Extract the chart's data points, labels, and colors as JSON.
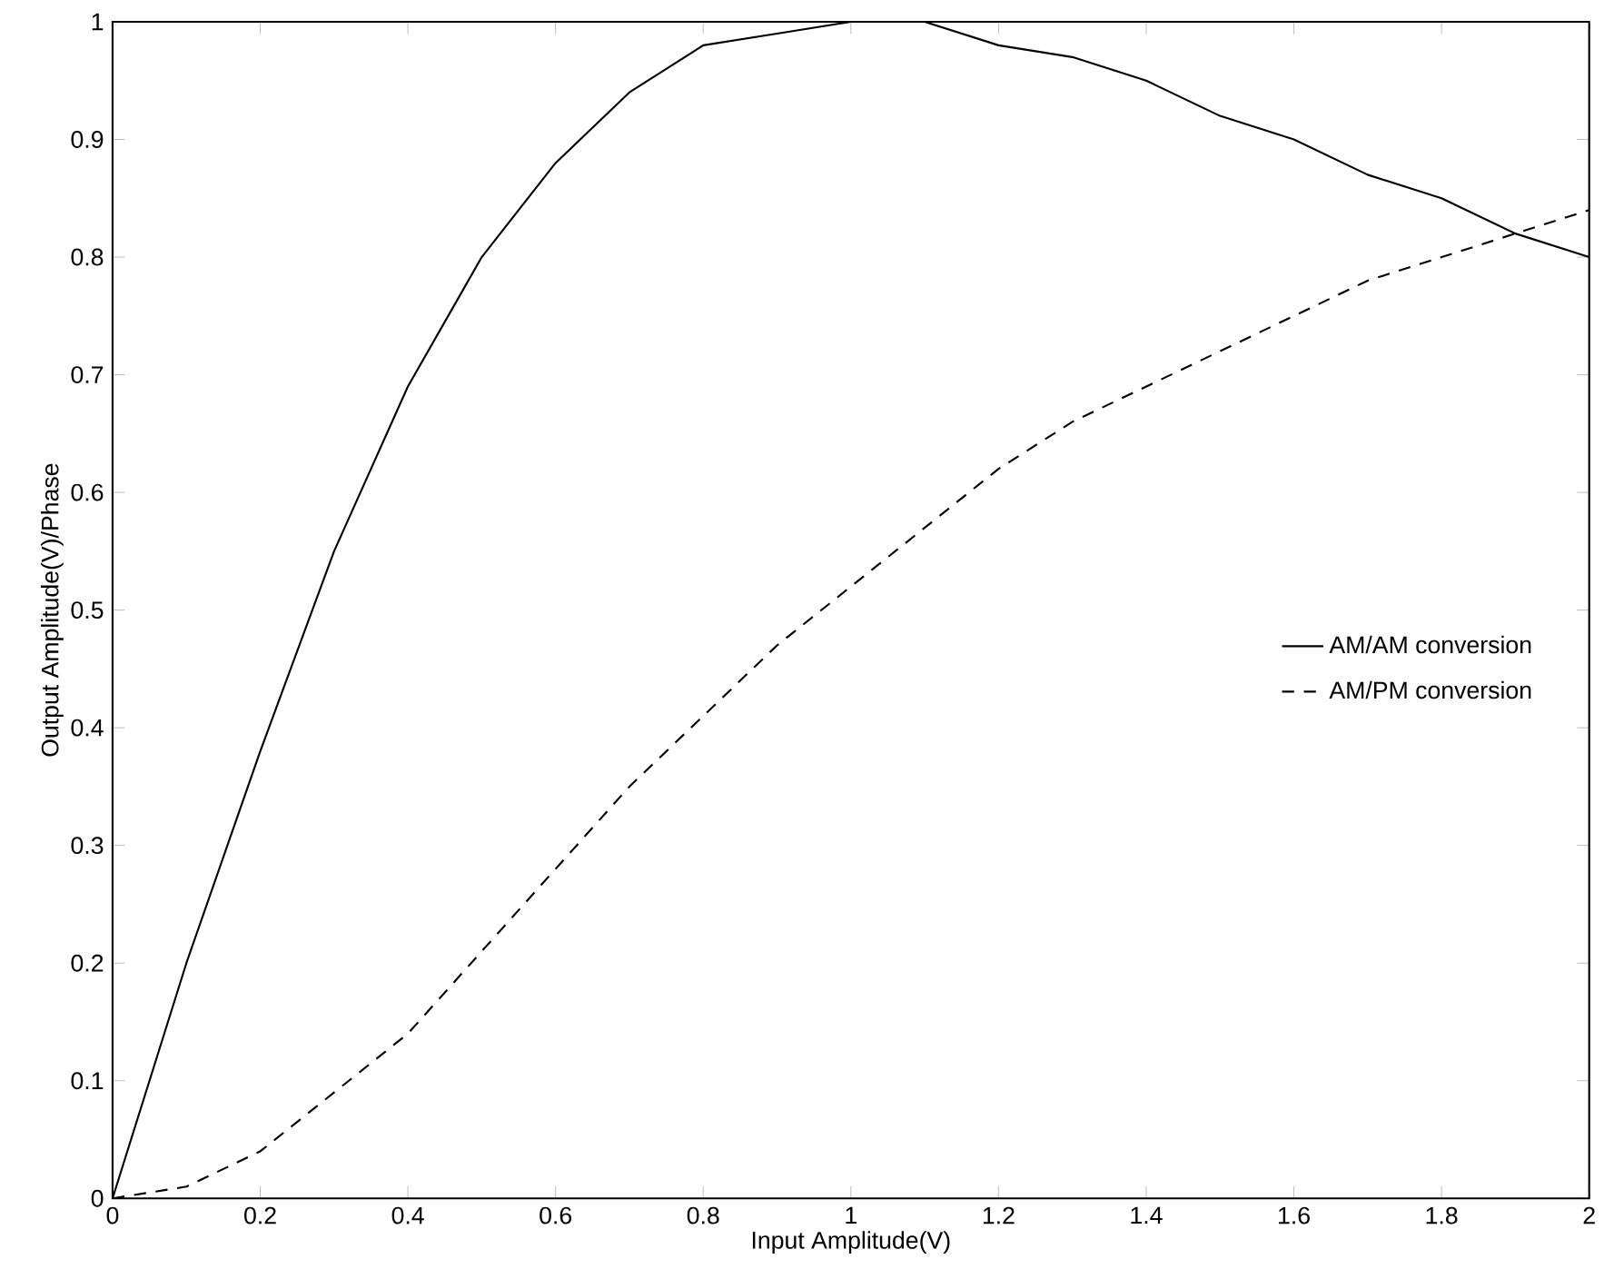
{
  "chart_data": {
    "type": "line",
    "xlabel": "Input Amplitude(V)",
    "ylabel": "Output Amplitude(V)/Phase",
    "x": [
      0,
      0.1,
      0.2,
      0.3,
      0.4,
      0.5,
      0.6,
      0.7,
      0.8,
      0.9,
      1.0,
      1.1,
      1.2,
      1.3,
      1.4,
      1.5,
      1.6,
      1.7,
      1.8,
      1.9,
      2.0
    ],
    "series": [
      {
        "name": "AM/AM conversion",
        "color": "#000000",
        "line_style": "solid",
        "values": [
          0,
          0.2,
          0.38,
          0.55,
          0.69,
          0.8,
          0.88,
          0.94,
          0.98,
          0.99,
          1.0,
          1.0,
          0.98,
          0.97,
          0.95,
          0.92,
          0.9,
          0.87,
          0.85,
          0.82,
          0.8
        ]
      },
      {
        "name": "AM/PM conversion",
        "color": "#000000",
        "line_style": "dashed",
        "values": [
          0,
          0.01,
          0.04,
          0.09,
          0.14,
          0.21,
          0.28,
          0.35,
          0.41,
          0.47,
          0.52,
          0.57,
          0.62,
          0.66,
          0.69,
          0.72,
          0.75,
          0.78,
          0.8,
          0.82,
          0.84
        ]
      }
    ],
    "xlim": [
      0,
      2
    ],
    "xticks": [
      0,
      0.2,
      0.4,
      0.6,
      0.8,
      1,
      1.2,
      1.4,
      1.6,
      1.8,
      2
    ],
    "ylim": [
      0,
      1
    ],
    "yticks": [
      0,
      0.1,
      0.2,
      0.3,
      0.4,
      0.5,
      0.6,
      0.7,
      0.8,
      0.9,
      1
    ],
    "grid": false,
    "legend": "right",
    "marker": "none"
  }
}
